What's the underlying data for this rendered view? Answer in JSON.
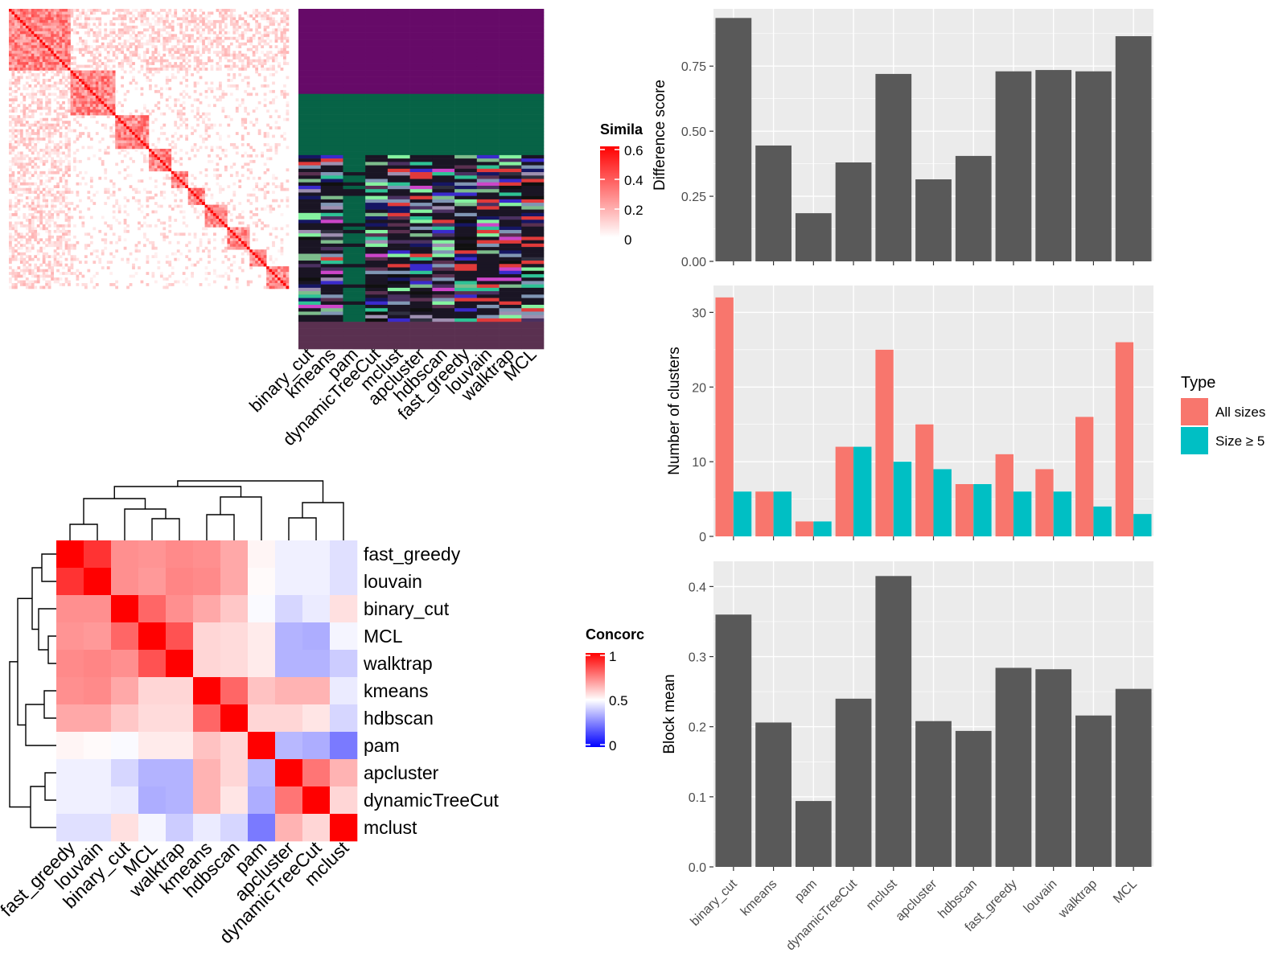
{
  "methods_order": [
    "binary_cut",
    "kmeans",
    "pam",
    "dynamicTreeCut",
    "mclust",
    "apcluster",
    "hdbscan",
    "fast_greedy",
    "louvain",
    "walktrap",
    "MCL"
  ],
  "similarity_legend": {
    "title": "Simila",
    "ticks": [
      "0.6",
      "0.4",
      "0.2",
      "0"
    ],
    "low_color": "#ffffff",
    "high_color": "#ff0000"
  },
  "concordance_legend": {
    "title": "Concorc",
    "ticks": [
      "1",
      "0.5",
      "0"
    ],
    "low_color": "#0000ff",
    "mid_color": "#ffffff",
    "high_color": "#ff0000"
  },
  "membership_colors": [
    "#660a68",
    "#076346",
    "#1a1524",
    "#8096b4",
    "#7dbc8c",
    "#2ec295",
    "#5a3050",
    "#9e8fb0",
    "#161663",
    "#cc45c9",
    "#85f2a0",
    "#303040",
    "#4a3060",
    "#e03a3a",
    "#3a2acc",
    "#101010"
  ],
  "concordance": {
    "labels": [
      "fast_greedy",
      "louvain",
      "binary_cut",
      "MCL",
      "walktrap",
      "kmeans",
      "hdbscan",
      "pam",
      "apcluster",
      "dynamicTreeCut",
      "mclust"
    ],
    "matrix": [
      [
        1.0,
        0.9,
        0.72,
        0.71,
        0.73,
        0.72,
        0.67,
        0.52,
        0.47,
        0.47,
        0.44
      ],
      [
        0.9,
        1.0,
        0.72,
        0.7,
        0.74,
        0.73,
        0.67,
        0.51,
        0.47,
        0.47,
        0.44
      ],
      [
        0.72,
        0.72,
        1.0,
        0.8,
        0.72,
        0.67,
        0.61,
        0.49,
        0.42,
        0.46,
        0.56
      ],
      [
        0.71,
        0.7,
        0.8,
        1.0,
        0.84,
        0.58,
        0.57,
        0.54,
        0.35,
        0.34,
        0.48
      ],
      [
        0.73,
        0.74,
        0.72,
        0.84,
        1.0,
        0.58,
        0.57,
        0.54,
        0.35,
        0.35,
        0.4
      ],
      [
        0.72,
        0.73,
        0.67,
        0.58,
        0.58,
        1.0,
        0.8,
        0.62,
        0.65,
        0.65,
        0.46
      ],
      [
        0.67,
        0.67,
        0.61,
        0.57,
        0.57,
        0.8,
        1.0,
        0.58,
        0.58,
        0.55,
        0.42
      ],
      [
        0.52,
        0.51,
        0.49,
        0.54,
        0.54,
        0.62,
        0.58,
        1.0,
        0.36,
        0.34,
        0.24
      ],
      [
        0.47,
        0.47,
        0.42,
        0.35,
        0.35,
        0.65,
        0.58,
        0.36,
        1.0,
        0.77,
        0.65
      ],
      [
        0.47,
        0.47,
        0.46,
        0.34,
        0.35,
        0.65,
        0.55,
        0.34,
        0.77,
        1.0,
        0.58
      ],
      [
        0.44,
        0.44,
        0.56,
        0.48,
        0.4,
        0.46,
        0.42,
        0.24,
        0.65,
        0.58,
        1.0
      ]
    ]
  },
  "chart_data": [
    {
      "type": "bar",
      "categories": [
        "binary_cut",
        "kmeans",
        "pam",
        "dynamicTreeCut",
        "mclust",
        "apcluster",
        "hdbscan",
        "fast_greedy",
        "louvain",
        "walktrap",
        "MCL"
      ],
      "values": [
        0.935,
        0.445,
        0.185,
        0.38,
        0.72,
        0.315,
        0.405,
        0.73,
        0.735,
        0.73,
        0.865
      ],
      "ylabel": "Difference score",
      "ylim": [
        0,
        0.97
      ],
      "yticks": [
        "0.00",
        "0.25",
        "0.50",
        "0.75"
      ],
      "color": "#595959"
    },
    {
      "type": "bar",
      "categories": [
        "binary_cut",
        "kmeans",
        "pam",
        "dynamicTreeCut",
        "mclust",
        "apcluster",
        "hdbscan",
        "fast_greedy",
        "louvain",
        "walktrap",
        "MCL"
      ],
      "series": [
        {
          "name": "All sizes",
          "values": [
            32,
            6,
            2,
            12,
            25,
            15,
            7,
            11,
            9,
            16,
            26
          ],
          "color": "#f8766d"
        },
        {
          "name": "Size ≥ 5",
          "values": [
            6,
            6,
            2,
            12,
            10,
            9,
            7,
            6,
            6,
            4,
            3
          ],
          "color": "#00bfc4"
        }
      ],
      "ylabel": "Number of clusters",
      "ylim": [
        0,
        33.6
      ],
      "yticks": [
        "0",
        "10",
        "20",
        "30"
      ],
      "legend": {
        "title": "Type",
        "position": "right"
      }
    },
    {
      "type": "bar",
      "categories": [
        "binary_cut",
        "kmeans",
        "pam",
        "dynamicTreeCut",
        "mclust",
        "apcluster",
        "hdbscan",
        "fast_greedy",
        "louvain",
        "walktrap",
        "MCL"
      ],
      "values": [
        0.36,
        0.206,
        0.094,
        0.24,
        0.415,
        0.208,
        0.194,
        0.284,
        0.282,
        0.216,
        0.254
      ],
      "ylabel": "Block mean",
      "ylim": [
        0,
        0.436
      ],
      "yticks": [
        "0.0",
        "0.1",
        "0.2",
        "0.3",
        "0.4"
      ],
      "color": "#595959"
    }
  ]
}
